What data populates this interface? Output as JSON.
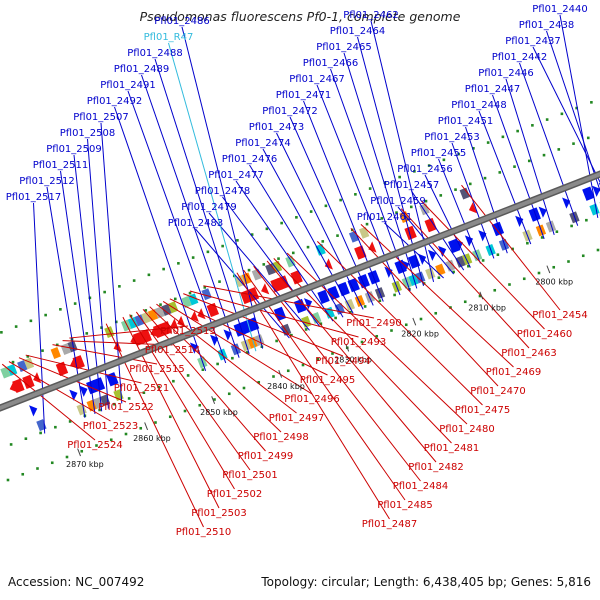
{
  "title": "Pseudomonas fluorescens Pf0-1, complete genome",
  "footer": {
    "accession": "Accession: NC_007492",
    "summary": "Topology: circular; Length: 6,438,405 bp; Genes: 5,816"
  },
  "colors": {
    "forward_label": "#0000cc",
    "reverse_label": "#cc0000",
    "rna_label": "#33bbdd",
    "forward_gene": "#0011ee",
    "reverse_gene": "#ee1111",
    "backbone": "#8a8a8a",
    "tick": "#228822"
  },
  "scale_ticks": [
    {
      "kbp": 2800,
      "label": "2800 kbp"
    },
    {
      "kbp": 2810,
      "label": "2810 kbp"
    },
    {
      "kbp": 2820,
      "label": "2820 kbp"
    },
    {
      "kbp": 2830,
      "label": "2830 kbp"
    },
    {
      "kbp": 2840,
      "label": "2840 kbp"
    },
    {
      "kbp": 2850,
      "label": "2850 kbp"
    },
    {
      "kbp": 2860,
      "label": "2860 kbp"
    },
    {
      "kbp": 2870,
      "label": "2870 kbp"
    }
  ],
  "genes_forward": [
    {
      "label": "Pfl01_2440",
      "kbp": 2791.0
    },
    {
      "label": "Pfl01_2438",
      "kbp": 2789.5
    },
    {
      "label": "Pfl01_2437",
      "kbp": 2788.5
    },
    {
      "label": "Pfl01_2442",
      "kbp": 2794.0
    },
    {
      "label": "Pfl01_2446",
      "kbp": 2797.5
    },
    {
      "label": "Pfl01_2447",
      "kbp": 2799.0
    },
    {
      "label": "Pfl01_2448",
      "kbp": 2801.0
    },
    {
      "label": "Pfl01_2451",
      "kbp": 2804.5
    },
    {
      "label": "Pfl01_2453",
      "kbp": 2806.5
    },
    {
      "label": "Pfl01_2455",
      "kbp": 2808.5
    },
    {
      "label": "Pfl01_2456",
      "kbp": 2810.0
    },
    {
      "label": "Pfl01_2457",
      "kbp": 2811.0
    },
    {
      "label": "Pfl01_2459",
      "kbp": 2812.5
    },
    {
      "label": "Pfl01_2461",
      "kbp": 2814.0
    },
    {
      "label": "Pfl01_2462",
      "kbp": 2815.5
    },
    {
      "label": "Pfl01_2464",
      "kbp": 2817.0
    },
    {
      "label": "Pfl01_2465",
      "kbp": 2818.0
    },
    {
      "label": "Pfl01_2466",
      "kbp": 2819.0
    },
    {
      "label": "Pfl01_2467",
      "kbp": 2820.5
    },
    {
      "label": "Pfl01_2471",
      "kbp": 2823.0
    },
    {
      "label": "Pfl01_2472",
      "kbp": 2824.5
    },
    {
      "label": "Pfl01_2473",
      "kbp": 2826.0
    },
    {
      "label": "Pfl01_2474",
      "kbp": 2827.5
    },
    {
      "label": "Pfl01_2476",
      "kbp": 2829.0
    },
    {
      "label": "Pfl01_2477",
      "kbp": 2830.5
    },
    {
      "label": "Pfl01_2478",
      "kbp": 2832.5
    },
    {
      "label": "Pfl01_2479",
      "kbp": 2834.0
    },
    {
      "label": "Pfl01_2483",
      "kbp": 2837.0
    },
    {
      "label": "Pfl01_2486",
      "kbp": 2841.0
    },
    {
      "label": "Pfl01_R47",
      "kbp": 2842.0,
      "rna": true
    },
    {
      "label": "Pfl01_2488",
      "kbp": 2843.0
    },
    {
      "label": "Pfl01_2489",
      "kbp": 2844.5
    },
    {
      "label": "Pfl01_2491",
      "kbp": 2846.5
    },
    {
      "label": "Pfl01_2492",
      "kbp": 2849.5
    },
    {
      "label": "Pfl01_2507",
      "kbp": 2862.0
    },
    {
      "label": "Pfl01_2508",
      "kbp": 2864.0
    },
    {
      "label": "Pfl01_2509",
      "kbp": 2865.0
    },
    {
      "label": "Pfl01_2511",
      "kbp": 2866.0
    },
    {
      "label": "Pfl01_2512",
      "kbp": 2867.5
    },
    {
      "label": "Pfl01_2517",
      "kbp": 2873.5
    }
  ],
  "genes_reverse": [
    {
      "label": "Pfl01_2454",
      "kbp": 2807.0
    },
    {
      "label": "Pfl01_2460",
      "kbp": 2813.0
    },
    {
      "label": "Pfl01_2463",
      "kbp": 2816.0
    },
    {
      "label": "Pfl01_2469",
      "kbp": 2822.0
    },
    {
      "label": "Pfl01_2470",
      "kbp": 2823.5
    },
    {
      "label": "Pfl01_2475",
      "kbp": 2828.5
    },
    {
      "label": "Pfl01_2480",
      "kbp": 2833.0
    },
    {
      "label": "Pfl01_2481",
      "kbp": 2835.0
    },
    {
      "label": "Pfl01_2482",
      "kbp": 2836.0
    },
    {
      "label": "Pfl01_2484",
      "kbp": 2838.0
    },
    {
      "label": "Pfl01_2485",
      "kbp": 2839.5
    },
    {
      "label": "Pfl01_2487",
      "kbp": 2840.5
    },
    {
      "label": "Pfl01_2490",
      "kbp": 2845.5
    },
    {
      "label": "Pfl01_2493",
      "kbp": 2847.5
    },
    {
      "label": "Pfl01_2494",
      "kbp": 2848.5
    },
    {
      "label": "Pfl01_2495",
      "kbp": 2850.5
    },
    {
      "label": "Pfl01_2496",
      "kbp": 2851.5
    },
    {
      "label": "Pfl01_2497",
      "kbp": 2852.5
    },
    {
      "label": "Pfl01_2498",
      "kbp": 2853.5
    },
    {
      "label": "Pfl01_2499",
      "kbp": 2854.5
    },
    {
      "label": "Pfl01_2501",
      "kbp": 2855.5
    },
    {
      "label": "Pfl01_2502",
      "kbp": 2856.5
    },
    {
      "label": "Pfl01_2503",
      "kbp": 2857.5
    },
    {
      "label": "Pfl01_2510",
      "kbp": 2860.0
    },
    {
      "label": "Pfl01_2513",
      "kbp": 2865.5
    },
    {
      "label": "Pfl01_2514",
      "kbp": 2866.5
    },
    {
      "label": "Pfl01_2515",
      "kbp": 2868.0
    },
    {
      "label": "Pfl01_2521",
      "kbp": 2872.0
    },
    {
      "label": "Pfl01_2522",
      "kbp": 2873.0
    },
    {
      "label": "Pfl01_2523",
      "kbp": 2874.5
    },
    {
      "label": "Pfl01_2524",
      "kbp": 2875.5
    }
  ]
}
